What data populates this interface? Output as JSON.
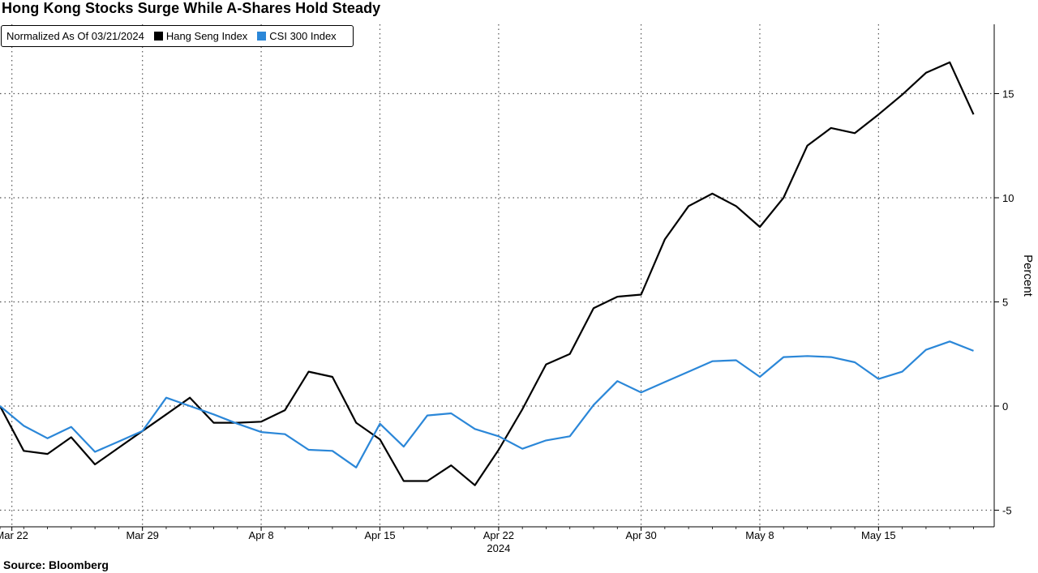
{
  "chart_data": {
    "type": "line",
    "title": "Hong Kong Stocks Surge While A-Shares Hold Steady",
    "legend_note": "Normalized As Of 03/21/2024",
    "legend_position": "top-left",
    "ylabel": "Percent",
    "xlabel": "2024",
    "ylim": [
      -5.5,
      18.5
    ],
    "y_ticks": [
      -5,
      0,
      5,
      10,
      15
    ],
    "grid": true,
    "x_ticks": [
      "Mar 22",
      "Mar 29",
      "Apr 8",
      "Apr 15",
      "Apr 22",
      "Apr 30",
      "May 8",
      "May 15"
    ],
    "x_tick_indices": [
      0.5,
      6,
      11,
      16,
      21,
      27,
      32,
      37
    ],
    "x": [
      "Mar 21",
      "Mar 22",
      "Mar 25",
      "Mar 26",
      "Mar 27",
      "Mar 28",
      "Mar 29",
      "Apr 1",
      "Apr 2",
      "Apr 3",
      "Apr 5",
      "Apr 8",
      "Apr 9",
      "Apr 10",
      "Apr 11",
      "Apr 12",
      "Apr 15",
      "Apr 16",
      "Apr 17",
      "Apr 18",
      "Apr 19",
      "Apr 22",
      "Apr 23",
      "Apr 24",
      "Apr 25",
      "Apr 26",
      "Apr 29",
      "Apr 30",
      "May 2",
      "May 3",
      "May 6",
      "May 7",
      "May 8",
      "May 9",
      "May 10",
      "May 13",
      "May 14",
      "May 16",
      "May 17",
      "May 20",
      "May 21",
      "May 22"
    ],
    "series": [
      {
        "name": "Hang Seng Index",
        "color": "#000000",
        "values": [
          0.0,
          -2.15,
          -2.3,
          -1.5,
          -2.8,
          -2.0,
          -1.2,
          -0.4,
          0.4,
          -0.8,
          -0.8,
          -0.75,
          -0.2,
          1.65,
          1.4,
          -0.8,
          -1.6,
          -3.6,
          -3.6,
          -2.85,
          -3.8,
          -2.1,
          -0.15,
          2.0,
          2.5,
          4.7,
          5.25,
          5.35,
          8.0,
          9.6,
          10.2,
          9.6,
          8.6,
          10.0,
          12.5,
          13.35,
          13.1,
          14.0,
          14.95,
          16.0,
          16.5,
          14.0
        ]
      },
      {
        "name": "CSI 300 Index",
        "color": "#2b87d8",
        "values": [
          0.0,
          -0.95,
          -1.55,
          -1.0,
          -2.2,
          -1.7,
          -1.2,
          0.4,
          0.0,
          -0.4,
          -0.85,
          -1.25,
          -1.35,
          -2.1,
          -2.15,
          -2.95,
          -0.85,
          -1.95,
          -0.45,
          -0.35,
          -1.1,
          -1.45,
          -2.05,
          -1.65,
          -1.45,
          0.05,
          1.2,
          0.65,
          1.15,
          1.65,
          2.15,
          2.2,
          1.4,
          2.35,
          2.4,
          2.35,
          2.1,
          1.3,
          1.65,
          2.7,
          3.1,
          2.65
        ]
      }
    ]
  },
  "source_text": "Source:  Bloomberg"
}
